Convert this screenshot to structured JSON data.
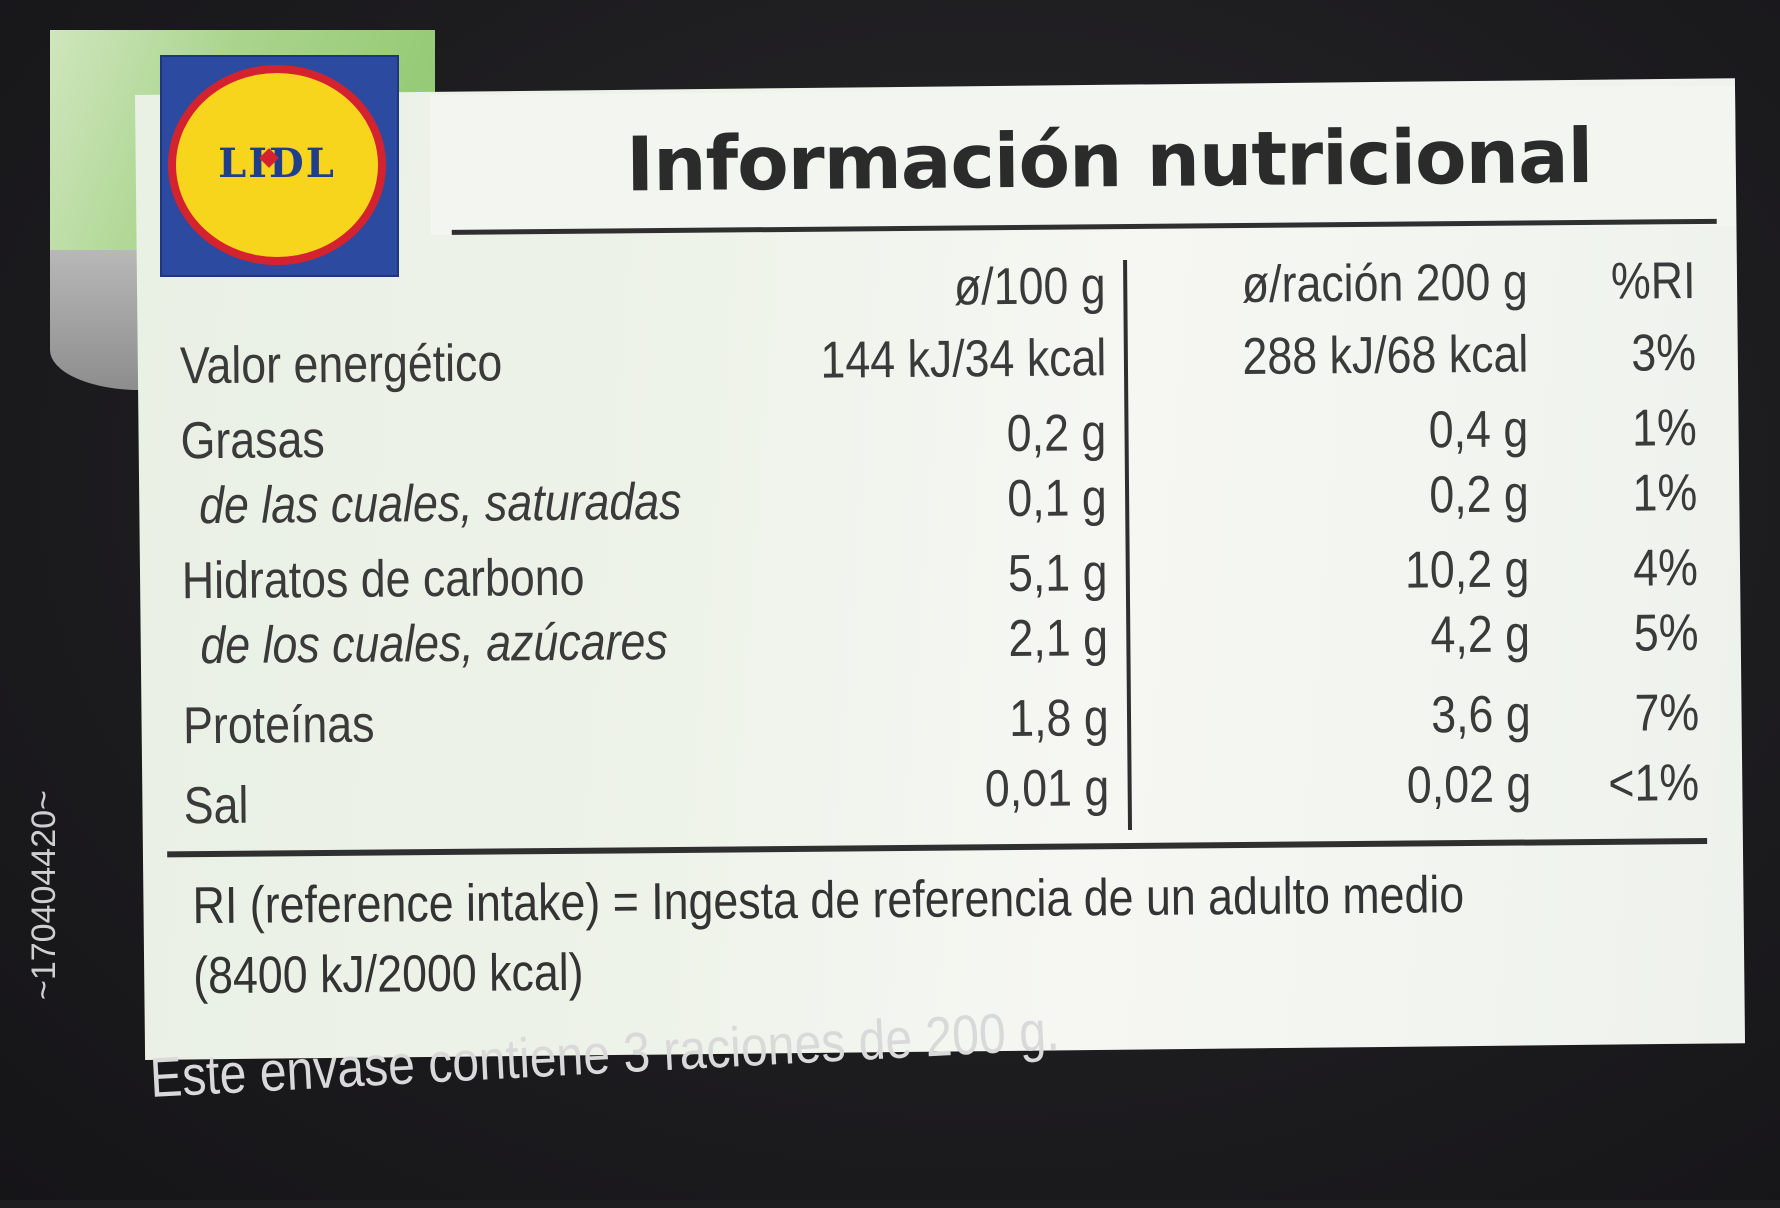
{
  "brand": {
    "logo_text": "LIDL"
  },
  "label": {
    "title": "Información nutricional",
    "headers": {
      "per_100": "ø/100 g",
      "per_portion": "ø/ración 200 g",
      "ri": "%RI"
    },
    "rows": [
      {
        "name": "Valor energético",
        "per_100": "144 kJ/34 kcal",
        "per_portion": "288 kJ/68 kcal",
        "ri": "3%"
      },
      {
        "name": "Grasas",
        "per_100": "0,2 g",
        "per_portion": "0,4 g",
        "ri": "1%"
      },
      {
        "name": "de las cuales, saturadas",
        "per_100": "0,1 g",
        "per_portion": "0,2 g",
        "ri": "1%"
      },
      {
        "name": "Hidratos de carbono",
        "per_100": "5,1 g",
        "per_portion": "10,2 g",
        "ri": "4%"
      },
      {
        "name": "de los cuales, azúcares",
        "per_100": "2,1 g",
        "per_portion": "4,2 g",
        "ri": "5%"
      },
      {
        "name": "Proteínas",
        "per_100": "1,8 g",
        "per_portion": "3,6 g",
        "ri": "7%"
      },
      {
        "name": "Sal",
        "per_100": "0,01 g",
        "per_portion": "0,02 g",
        "ri": "<1%"
      }
    ],
    "footnote_line1": "RI (reference intake) = Ingesta de referencia de un adulto medio",
    "footnote_line2": "(8400 kJ/2000 kcal)"
  },
  "package_text": "Este envase contiene 3 raciones de 200 g.",
  "side_code": "~170404420~",
  "colors": {
    "background": "#1e1d20",
    "panel": "#eef3ea",
    "ribbon_green": "#8ec66c",
    "logo_blue": "#2b4aa0",
    "logo_yellow": "#f7d51d",
    "logo_red": "#d4232e",
    "text": "#3a3a3a"
  }
}
